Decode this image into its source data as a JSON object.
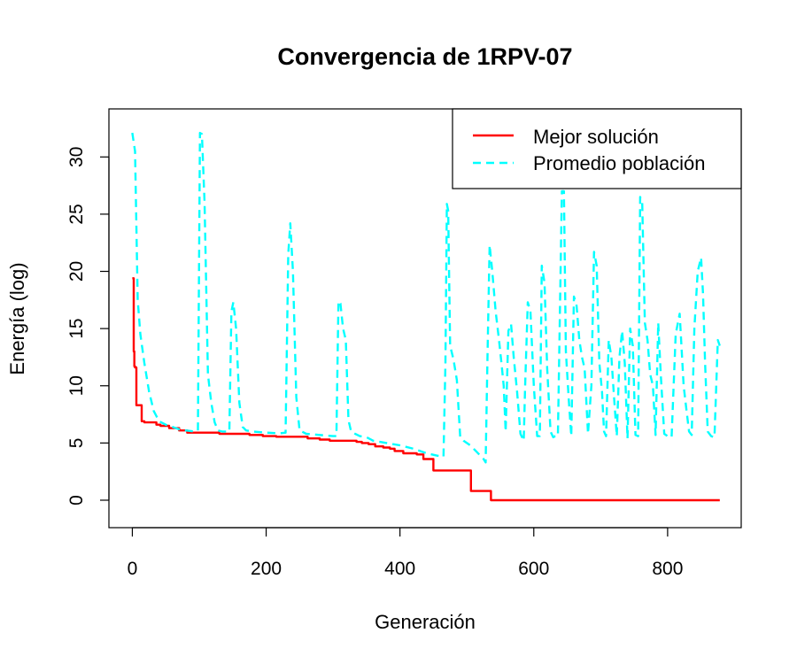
{
  "chart_data": {
    "type": "line",
    "title": "Convergencia de 1RPV-07",
    "xlabel": "Generación",
    "ylabel": "Energía (log)",
    "xlim": [
      -35,
      910
    ],
    "ylim": [
      -2.4,
      34.2
    ],
    "xticks": [
      0,
      200,
      400,
      600,
      800
    ],
    "yticks": [
      0,
      5,
      10,
      15,
      20,
      25,
      30
    ],
    "grid": false,
    "legend_position": "top-right",
    "series": [
      {
        "name": "Mejor solución",
        "color": "#ff0000",
        "style": "solid",
        "step": true,
        "x": [
          0,
          2,
          3,
          4,
          6,
          10,
          14,
          18,
          36,
          42,
          55,
          70,
          82,
          130,
          175,
          195,
          215,
          262,
          280,
          295,
          310,
          335,
          343,
          353,
          363,
          375,
          385,
          392,
          405,
          425,
          435,
          450,
          470,
          506,
          536,
          878
        ],
        "y": [
          19.4,
          13.0,
          11.7,
          11.6,
          8.3,
          8.3,
          6.9,
          6.8,
          6.6,
          6.5,
          6.3,
          6.1,
          5.9,
          5.8,
          5.7,
          5.6,
          5.55,
          5.4,
          5.3,
          5.2,
          5.2,
          5.1,
          5.0,
          4.9,
          4.7,
          4.6,
          4.5,
          4.3,
          4.1,
          4.0,
          3.6,
          2.6,
          2.6,
          0.8,
          0.0,
          0.0
        ]
      },
      {
        "name": "Promedio población",
        "color": "#00ffff",
        "style": "dashed",
        "step": false,
        "x": [
          0,
          4,
          8,
          12,
          18,
          25,
          32,
          40,
          50,
          60,
          70,
          80,
          92,
          98,
          101,
          104,
          108,
          113,
          118,
          123,
          128,
          134,
          140,
          145,
          148,
          151,
          155,
          160,
          165,
          170,
          180,
          200,
          220,
          229,
          233,
          236,
          240,
          245,
          250,
          260,
          280,
          300,
          305,
          308,
          311,
          315,
          319,
          323,
          327,
          333,
          340,
          350,
          360,
          380,
          400,
          420,
          440,
          455,
          465,
          468,
          470,
          472,
          475,
          480,
          485,
          490,
          495,
          505,
          515,
          525,
          528,
          531,
          534,
          538,
          543,
          548,
          552,
          555,
          558,
          562,
          566,
          570,
          575,
          580,
          585,
          587,
          591,
          595,
          600,
          605,
          609,
          612,
          616,
          620,
          625,
          629,
          632,
          636,
          642,
          645,
          648,
          652,
          656,
          660,
          664,
          668,
          672,
          676,
          681,
          686,
          690,
          694,
          698,
          702,
          705,
          708,
          712,
          716,
          720,
          724,
          728,
          732,
          736,
          740,
          744,
          748,
          752,
          756,
          759,
          762,
          766,
          770,
          774,
          778,
          782,
          786,
          790,
          795,
          800,
          806,
          812,
          818,
          824,
          828,
          832,
          836,
          840,
          845,
          850,
          853,
          856,
          860,
          865,
          870,
          875,
          878
        ],
        "y": [
          32.1,
          30.5,
          17.5,
          14.5,
          12.0,
          9.5,
          7.8,
          6.9,
          6.6,
          6.4,
          6.2,
          6.1,
          6.0,
          6.1,
          32.1,
          32.0,
          26.0,
          11.0,
          8.5,
          6.8,
          6.1,
          6.0,
          6.0,
          6.0,
          16.5,
          17.3,
          15.0,
          8.5,
          6.4,
          6.1,
          6.0,
          5.9,
          5.85,
          5.9,
          21.5,
          24.2,
          20.0,
          9.0,
          6.1,
          5.8,
          5.7,
          5.6,
          5.6,
          17.4,
          17.2,
          15.0,
          14.0,
          7.0,
          6.0,
          5.8,
          5.6,
          5.5,
          5.2,
          5.0,
          4.8,
          4.5,
          4.1,
          3.9,
          3.8,
          12.0,
          25.9,
          25.3,
          13.5,
          12.3,
          10.5,
          5.5,
          5.2,
          4.8,
          4.2,
          3.6,
          3.3,
          13.0,
          22.3,
          20.0,
          16.5,
          14.0,
          11.8,
          10.0,
          6.0,
          14.8,
          15.4,
          12.5,
          9.5,
          5.8,
          5.2,
          10.0,
          17.3,
          16.5,
          10.0,
          5.6,
          5.6,
          20.5,
          19.0,
          11.5,
          6.0,
          5.5,
          5.6,
          5.6,
          27.0,
          27.0,
          13.0,
          9.0,
          5.6,
          17.8,
          17.0,
          14.0,
          12.5,
          11.5,
          5.8,
          10.0,
          21.7,
          20.5,
          12.0,
          9.5,
          6.0,
          5.6,
          14.0,
          12.5,
          9.0,
          5.6,
          12.5,
          14.8,
          12.0,
          5.4,
          15.0,
          13.5,
          5.7,
          5.6,
          26.5,
          26.0,
          15.5,
          14.0,
          11.0,
          10.0,
          5.7,
          15.5,
          10.8,
          5.8,
          5.6,
          5.5,
          14.5,
          16.3,
          10.0,
          8.0,
          6.0,
          5.7,
          15.0,
          20.0,
          21.2,
          18.0,
          12.0,
          6.0,
          5.6,
          5.5,
          14.0,
          13.5
        ]
      }
    ]
  }
}
